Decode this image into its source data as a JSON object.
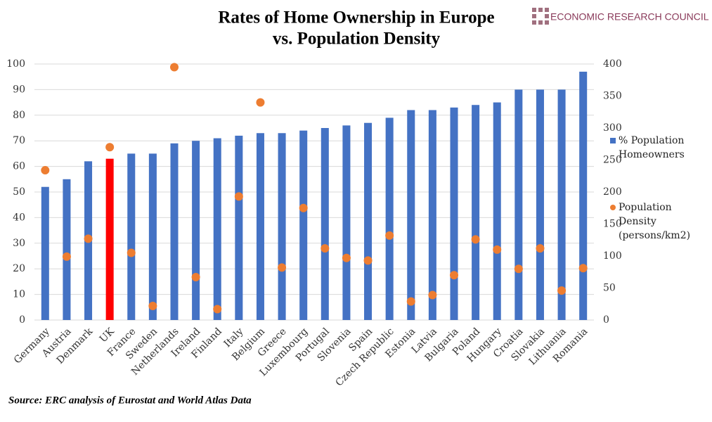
{
  "chart_data": {
    "type": "bar_scatter",
    "title": [
      "Rates of Home Ownership in Europe",
      "vs. Population Density"
    ],
    "logo": "ECONOMIC RESEARCH COUNCIL",
    "source": "Source: ERC analysis of Eurostat and World Atlas Data",
    "categories": [
      "Germany",
      "Austria",
      "Denmark",
      "UK",
      "France",
      "Sweden",
      "Netherlands",
      "Ireland",
      "Finland",
      "Italy",
      "Belgium",
      "Greece",
      "Luxembourg",
      "Portugal",
      "Slovenia",
      "Spain",
      "Czech Republic",
      "Estonia",
      "Latvia",
      "Bulgaria",
      "Poland",
      "Hungary",
      "Croatia",
      "Slovakia",
      "Lithuania",
      "Romania"
    ],
    "series": [
      {
        "name": "% Population Homeowners",
        "color": "#4472c4",
        "colors": [
          "#4472c4",
          "#4472c4",
          "#4472c4",
          "#ff0000",
          "#4472c4",
          "#4472c4",
          "#4472c4",
          "#4472c4",
          "#4472c4",
          "#4472c4",
          "#4472c4",
          "#4472c4",
          "#4472c4",
          "#4472c4",
          "#4472c4",
          "#4472c4",
          "#4472c4",
          "#4472c4",
          "#4472c4",
          "#4472c4",
          "#4472c4",
          "#4472c4",
          "#4472c4",
          "#4472c4",
          "#4472c4",
          "#4472c4"
        ],
        "values": [
          52,
          55,
          62,
          63,
          65,
          65,
          69,
          70,
          71,
          72,
          73,
          73,
          74,
          75,
          76,
          77,
          79,
          82,
          82,
          83,
          84,
          85,
          90,
          90,
          90,
          97
        ]
      },
      {
        "name": "Population Density (persons/km2)",
        "color": "#ed7d31",
        "axis": "y2",
        "values": [
          234,
          99,
          127,
          270,
          105,
          22,
          395,
          67,
          17,
          193,
          340,
          82,
          175,
          112,
          97,
          93,
          132,
          29,
          39,
          70,
          126,
          110,
          80,
          112,
          46,
          81
        ]
      }
    ],
    "ylim": [
      0,
      100
    ],
    "yticks": [
      0,
      10,
      20,
      30,
      40,
      50,
      60,
      70,
      80,
      90,
      100
    ],
    "y2lim": [
      0,
      400
    ],
    "y2ticks": [
      0,
      50,
      100,
      150,
      200,
      250,
      300,
      350,
      400
    ],
    "grid": true
  }
}
